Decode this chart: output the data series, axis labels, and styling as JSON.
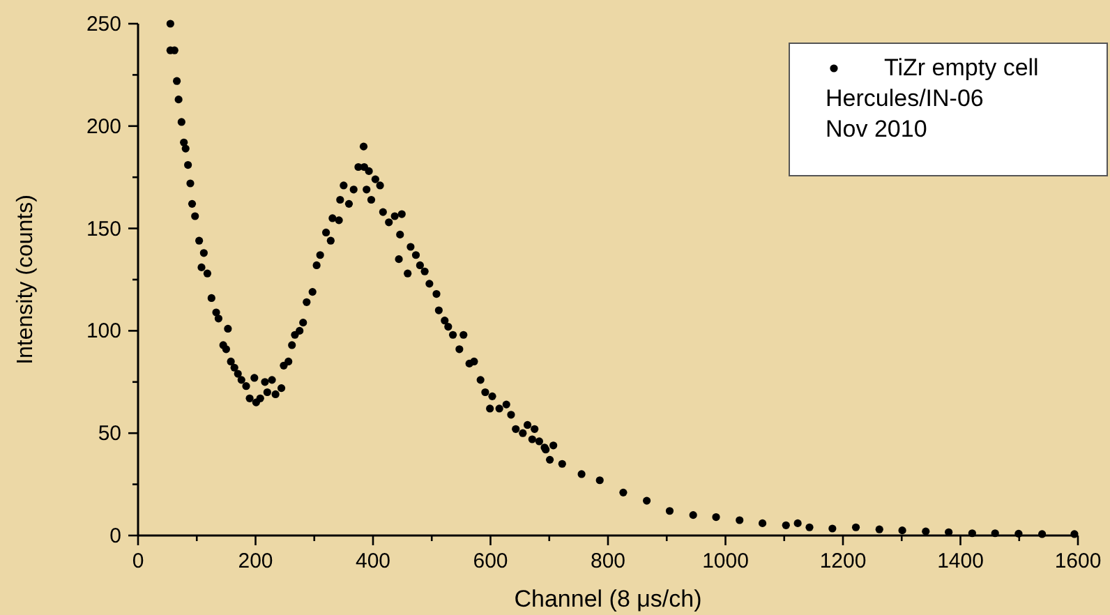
{
  "chart_data": {
    "type": "scatter",
    "xlabel": "Channel (8 μs/ch)",
    "ylabel": "Intensity (counts)",
    "annotations": [
      "Hercules/IN-06",
      "Nov 2010"
    ],
    "xlim": [
      0,
      1600
    ],
    "ylim": [
      0,
      250
    ],
    "xticks": [
      0,
      {
        "value": 100,
        "label": null
      },
      200,
      {
        "value": 300,
        "label": null
      },
      400,
      {
        "value": 500,
        "label": null
      },
      600,
      {
        "value": 700,
        "label": null
      },
      800,
      {
        "value": 900,
        "label": null
      },
      1000,
      {
        "value": 1100,
        "label": null
      },
      1200,
      {
        "value": 1300,
        "label": null
      },
      1400,
      {
        "value": 1500,
        "label": null
      },
      1600
    ],
    "yticks": [
      0,
      {
        "value": 25,
        "label": null
      },
      50,
      {
        "value": 75,
        "label": null
      },
      100,
      {
        "value": 125,
        "label": null
      },
      150,
      {
        "value": 175,
        "label": null
      },
      200,
      {
        "value": 225,
        "label": null
      },
      250
    ],
    "grid": false,
    "legend": "top right",
    "marker": "circle",
    "series": [
      {
        "name": "TiZr empty cell",
        "color": "#000000",
        "x": [
          55,
          55,
          62,
          66,
          69,
          74,
          78,
          81,
          85,
          89,
          92,
          97,
          104,
          108,
          112,
          118,
          125,
          133,
          137,
          145,
          150,
          153,
          158,
          164,
          170,
          176,
          184,
          190,
          198,
          201,
          208,
          216,
          220,
          228,
          234,
          244,
          248,
          256,
          262,
          267,
          275,
          281,
          287,
          297,
          304,
          310,
          320,
          328,
          331,
          342,
          344,
          350,
          359,
          367,
          375,
          384,
          385,
          389,
          393,
          397,
          404,
          412,
          417,
          427,
          437,
          444,
          446,
          449,
          459,
          464,
          473,
          480,
          488,
          496,
          508,
          512,
          522,
          528,
          536,
          547,
          554,
          564,
          572,
          583,
          591,
          599,
          603,
          615,
          627,
          635,
          643,
          655,
          663,
          671,
          675,
          683,
          692,
          694,
          701,
          707,
          722,
          755,
          786,
          826,
          866,
          905,
          945,
          984,
          1024,
          1063,
          1103,
          1123,
          1143,
          1182,
          1222,
          1262,
          1301,
          1341,
          1380,
          1420,
          1459,
          1499,
          1539,
          1594
        ],
        "values": [
          250,
          237,
          237,
          222,
          213,
          202,
          192,
          189,
          181,
          172,
          162,
          156,
          144,
          131,
          138,
          128,
          116,
          109,
          106,
          93,
          91,
          101,
          85,
          82,
          79,
          76,
          73,
          67,
          77,
          65,
          67,
          75,
          70,
          76,
          69,
          72,
          83,
          85,
          93,
          98,
          100,
          104,
          114,
          119,
          132,
          137,
          148,
          144,
          155,
          154,
          164,
          171,
          162,
          169,
          180,
          190,
          180,
          169,
          178,
          164,
          174,
          171,
          158,
          153,
          156,
          135,
          147,
          157,
          128,
          141,
          137,
          132,
          129,
          123,
          118,
          110,
          105,
          102,
          98,
          91,
          98,
          84,
          85,
          76,
          70,
          62,
          68,
          62,
          64,
          59,
          52,
          50,
          54,
          47,
          52,
          46,
          43,
          42,
          37,
          44,
          35,
          30,
          27,
          21,
          17,
          12,
          10,
          9,
          7.5,
          6,
          5,
          6,
          4,
          3.4,
          4,
          3,
          2.5,
          2,
          1.6,
          1.1,
          1.1,
          0.9,
          0.7,
          0.7
        ]
      }
    ]
  }
}
